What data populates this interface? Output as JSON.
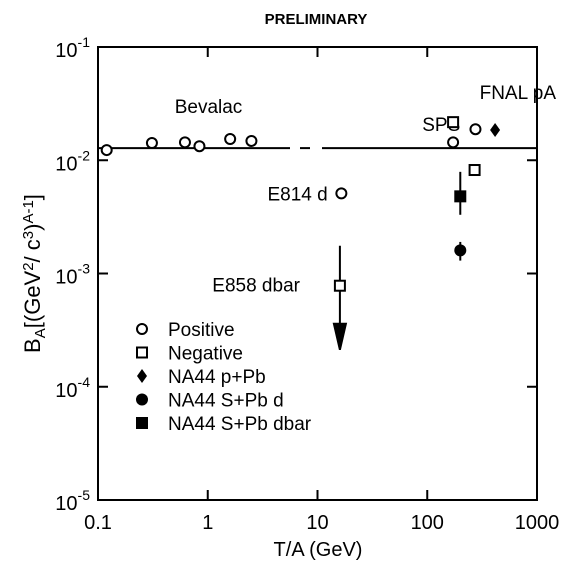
{
  "chart_data": {
    "type": "scatter",
    "title": "PRELIMINARY",
    "xlabel": "T/A (GeV)",
    "ylabel_parts": [
      [
        "B",
        "base"
      ],
      [
        "A",
        "sub"
      ],
      [
        "[(GeV",
        "base"
      ],
      [
        "2",
        "sup"
      ],
      [
        "/ c",
        "base"
      ],
      [
        "3",
        "sup"
      ],
      [
        ")",
        "base"
      ],
      [
        "A-1",
        "sup"
      ],
      [
        "]",
        "base"
      ]
    ],
    "xlog": true,
    "ylog": true,
    "xlim": [
      0.1,
      1000
    ],
    "ylim": [
      1e-05,
      0.1
    ],
    "xticks": [
      0.1,
      1,
      10,
      100,
      1000
    ],
    "yticks": [
      {
        "value": 0.1,
        "label": "10",
        "sup": "-1"
      },
      {
        "value": 0.01,
        "label": "10",
        "sup": "-2"
      },
      {
        "value": 0.001,
        "label": "10",
        "sup": "-3"
      },
      {
        "value": 0.0001,
        "label": "10",
        "sup": "-4"
      },
      {
        "value": 1e-05,
        "label": "10",
        "sup": "-5"
      }
    ],
    "reference_line": 0.0128,
    "annotations": [
      {
        "text": "Bevalac",
        "x": 0.5,
        "y": 0.03
      },
      {
        "text": "FNAL pA",
        "x": 300,
        "y": 0.04
      },
      {
        "text": "SPS",
        "x": 90,
        "y": 0.021
      },
      {
        "text": "E814 d",
        "x": 3.5,
        "y": 0.0051
      },
      {
        "text": "E858 dbar",
        "x": 1.1,
        "y": 0.0008
      }
    ],
    "series": [
      {
        "name": "Positive",
        "marker": "circle-open",
        "color": "#000",
        "x": [
          0.12,
          0.31,
          0.62,
          0.84,
          1.6,
          2.5,
          16.5,
          172,
          275
        ],
        "values": [
          0.0123,
          0.0142,
          0.0144,
          0.0133,
          0.0154,
          0.0148,
          0.0051,
          0.0144,
          0.0188
        ]
      },
      {
        "name": "Negative",
        "marker": "square-open",
        "color": "#000",
        "x": [
          16,
          172,
          270
        ],
        "values": [
          0.00078,
          0.0217,
          0.0082
        ],
        "upper_limits": [
          true,
          false,
          false
        ]
      },
      {
        "name": "NA44  p+Pb",
        "marker": "diamond",
        "color": "#000",
        "x": [
          415
        ],
        "values": [
          0.0185
        ]
      },
      {
        "name": "NA44  S+Pb  d",
        "marker": "circle",
        "color": "#000",
        "x": [
          200
        ],
        "values": [
          0.0016
        ],
        "yerr": [
          [
            0.0003,
            0.0003
          ]
        ]
      },
      {
        "name": "NA44  S+Pb  dbar",
        "marker": "square",
        "color": "#000",
        "x": [
          200
        ],
        "values": [
          0.0048
        ],
        "yerr": [
          [
            0.0015,
            0.0031
          ]
        ]
      }
    ]
  }
}
